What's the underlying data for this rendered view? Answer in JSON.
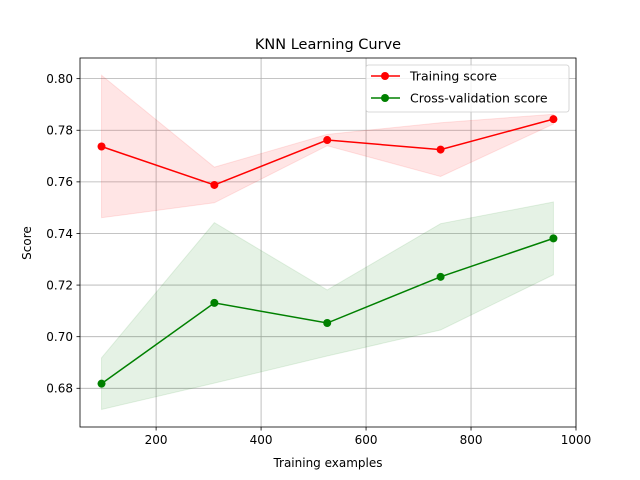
{
  "chart_data": {
    "type": "line",
    "title": "KNN Learning Curve",
    "xlabel": "Training examples",
    "ylabel": "Score",
    "xlim": [
      55,
      1000
    ],
    "ylim": [
      0.665,
      0.808
    ],
    "x_ticks": [
      200,
      400,
      600,
      800,
      1000
    ],
    "y_ticks": [
      0.68,
      0.7,
      0.72,
      0.74,
      0.76,
      0.78,
      0.8
    ],
    "y_tick_labels": [
      "0.68",
      "0.70",
      "0.72",
      "0.74",
      "0.76",
      "0.78",
      "0.80"
    ],
    "grid": true,
    "legend_position": "top-right",
    "x": [
      96,
      311,
      526,
      742,
      957
    ],
    "series": [
      {
        "name": "Training score",
        "color": "#ff0000",
        "values": [
          0.7737,
          0.7588,
          0.7762,
          0.7725,
          0.7843
        ],
        "band_upper": [
          0.8013,
          0.7657,
          0.7784,
          0.7829,
          0.7862
        ],
        "band_lower": [
          0.7461,
          0.7519,
          0.774,
          0.7621,
          0.7824
        ]
      },
      {
        "name": "Cross-validation score",
        "color": "#008000",
        "values": [
          0.6818,
          0.7131,
          0.7053,
          0.7232,
          0.7381
        ],
        "band_upper": [
          0.6918,
          0.7442,
          0.7181,
          0.7438,
          0.7522
        ],
        "band_lower": [
          0.6718,
          0.682,
          0.6925,
          0.7026,
          0.724
        ]
      }
    ]
  }
}
